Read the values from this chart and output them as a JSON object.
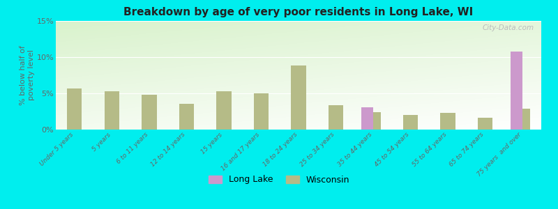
{
  "title": "Breakdown by age of very poor residents in Long Lake, WI",
  "ylabel": "% below half of\npoverty level",
  "categories": [
    "Under 5 years",
    "5 years",
    "6 to 11 years",
    "12 to 14 years",
    "15 years",
    "16 and 17 years",
    "18 to 24 years",
    "25 to 34 years",
    "35 to 44 years",
    "45 to 54 years",
    "55 to 64 years",
    "65 to 74 years",
    "75 years  and over"
  ],
  "long_lake_values": [
    null,
    null,
    null,
    null,
    null,
    null,
    null,
    null,
    3.1,
    null,
    null,
    null,
    10.8
  ],
  "wisconsin_values": [
    5.7,
    5.3,
    4.8,
    3.6,
    5.3,
    5.0,
    8.8,
    3.4,
    2.4,
    2.0,
    2.3,
    1.6,
    2.9
  ],
  "long_lake_color": "#cc99cc",
  "wisconsin_color": "#b5bb87",
  "background_color": "#00eeee",
  "ylim": [
    0,
    15
  ],
  "yticks": [
    0,
    5,
    10,
    15
  ],
  "ytick_labels": [
    "0%",
    "5%",
    "10%",
    "15%"
  ],
  "watermark": "City-Data.com",
  "bar_width": 0.4
}
